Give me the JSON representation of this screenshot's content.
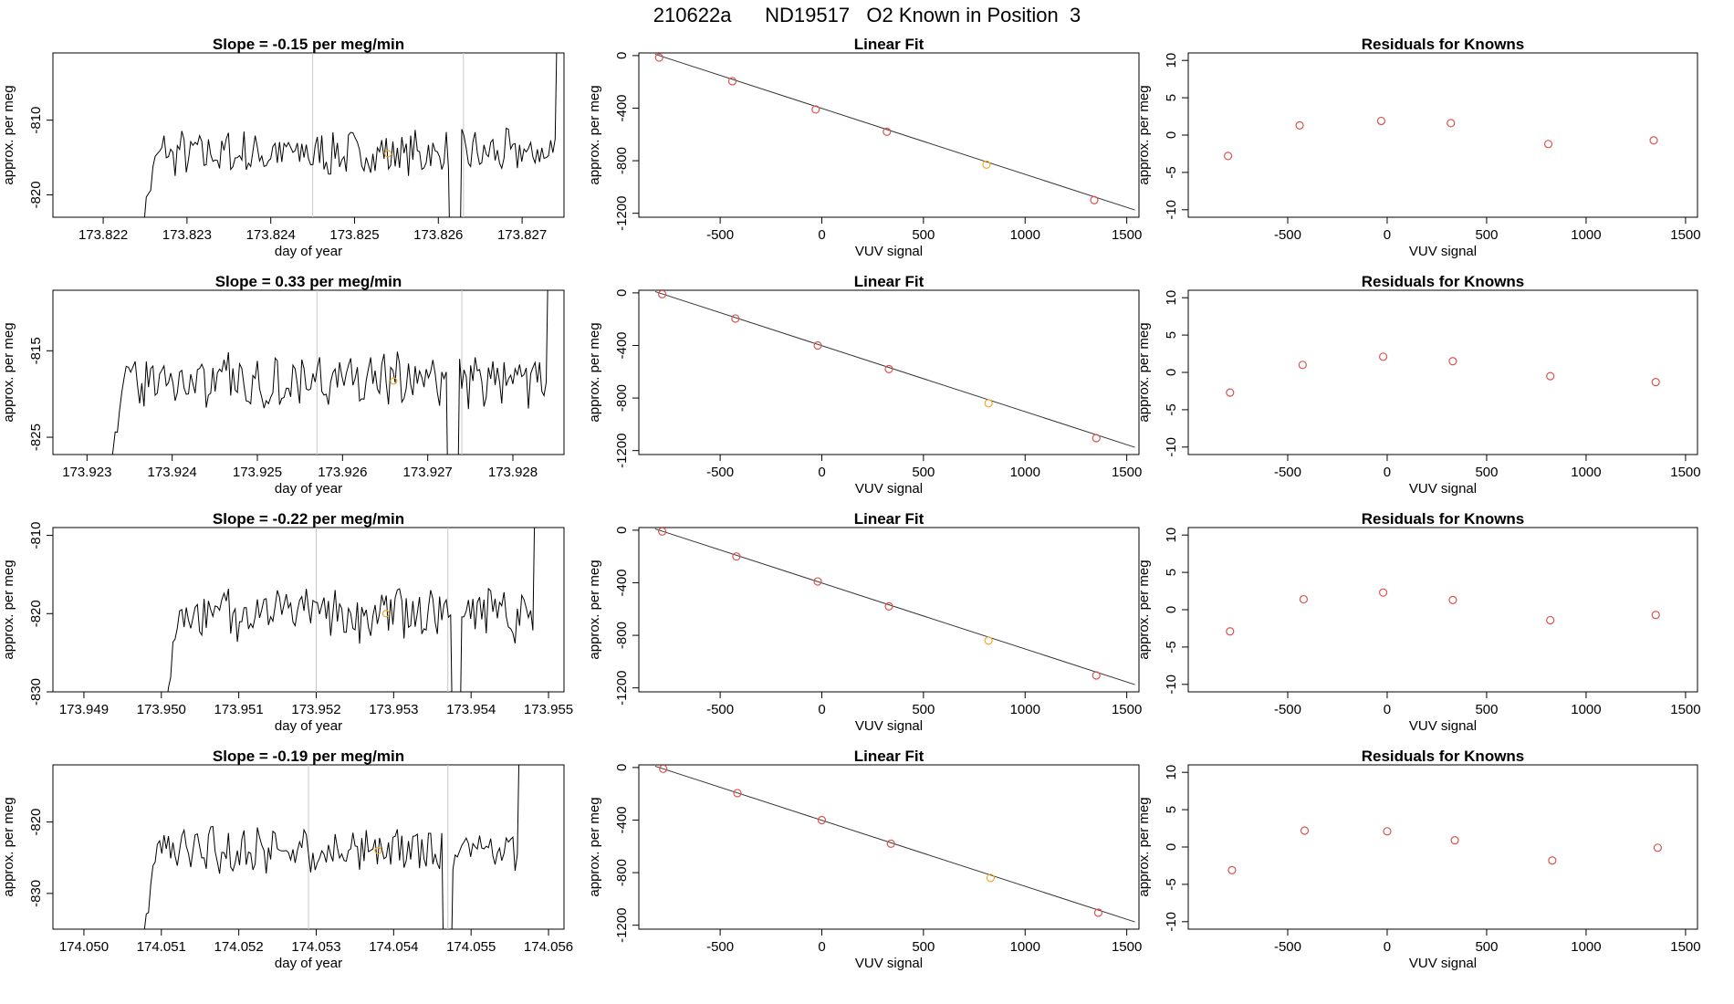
{
  "page": {
    "title": "210622a      ND19517   O2 Known in Position  3"
  },
  "colors": {
    "line": "#000000",
    "point": "#d9534f",
    "highlight": "#f0a830",
    "divider": "#c8c8c8",
    "fit": "#333333"
  },
  "chart_data": [
    {
      "type": "line",
      "row": 1,
      "title": "Slope =  -0.15  per meg/min",
      "xlabel": "day of year",
      "ylabel": "approx. per meg",
      "xlim": [
        173.8214,
        173.8275
      ],
      "ylim": [
        -823,
        -801
      ],
      "xticks": [
        "173.822",
        "173.823",
        "173.824",
        "173.825",
        "173.826",
        "173.827"
      ],
      "yticks": [
        -820,
        -810
      ],
      "dividers": [
        173.8245,
        173.8263
      ],
      "highlight_x": 173.8254,
      "start": 173.8224,
      "end": 173.8274,
      "baseline": -814.5,
      "noise": 2.2,
      "spike_down": 173.8262
    },
    {
      "type": "line",
      "row": 2,
      "title": "Slope =  0.33  per meg/min",
      "xlabel": "day of year",
      "ylabel": "approx. per meg",
      "xlim": [
        173.9226,
        173.9286
      ],
      "ylim": [
        -827,
        -808
      ],
      "xticks": [
        "173.923",
        "173.924",
        "173.925",
        "173.926",
        "173.927",
        "173.928"
      ],
      "yticks": [
        -825,
        -815
      ],
      "dividers": [
        173.9257,
        173.9274
      ],
      "highlight_x": 173.9266,
      "start": 173.9232,
      "end": 173.9284,
      "baseline": -818.5,
      "noise": 2.2,
      "spike_down": 173.9273
    },
    {
      "type": "line",
      "row": 3,
      "title": "Slope =  -0.22  per meg/min",
      "xlabel": "day of year",
      "ylabel": "approx. per meg",
      "xlim": [
        173.9486,
        173.9552
      ],
      "ylim": [
        -830,
        -809
      ],
      "xticks": [
        "173.949",
        "173.950",
        "173.951",
        "173.952",
        "173.953",
        "173.954",
        "173.955"
      ],
      "yticks": [
        -830,
        -820,
        -810
      ],
      "dividers": [
        173.952,
        173.9537
      ],
      "highlight_x": 173.9529,
      "start": 173.95,
      "end": 173.9548,
      "baseline": -820,
      "noise": 2.5,
      "spike_down": 173.9538
    },
    {
      "type": "line",
      "row": 4,
      "title": "Slope =  -0.19  per meg/min",
      "xlabel": "day of year",
      "ylabel": "approx. per meg",
      "xlim": [
        174.0496,
        174.0562
      ],
      "ylim": [
        -835,
        -812
      ],
      "xticks": [
        "174.050",
        "174.051",
        "174.052",
        "174.053",
        "174.054",
        "174.055",
        "174.056"
      ],
      "yticks": [
        -830,
        -820
      ],
      "dividers": [
        174.0529,
        174.0547
      ],
      "highlight_x": 174.0538,
      "start": 174.0507,
      "end": 174.0556,
      "baseline": -824,
      "noise": 2.2,
      "spike_down": 174.0547
    },
    {
      "type": "scatter",
      "row": 1,
      "title": "Linear Fit",
      "xlabel": "VUV signal",
      "ylabel": "approx. per meg",
      "xlim": [
        -900,
        1560
      ],
      "ylim": [
        -1230,
        20
      ],
      "xticks": [
        -500,
        0,
        500,
        1000,
        1500
      ],
      "yticks": [
        0,
        -400,
        -800,
        -1200
      ],
      "line": [
        [
          -820,
          10
        ],
        [
          1540,
          -1175
        ]
      ],
      "points": [
        [
          -800,
          -15
        ],
        [
          -440,
          -195
        ],
        [
          -30,
          -410
        ],
        [
          320,
          -580
        ],
        [
          810,
          -830
        ],
        [
          1340,
          -1100
        ]
      ],
      "highlight_index": 4
    },
    {
      "type": "scatter",
      "row": 2,
      "title": "Linear Fit",
      "xlabel": "VUV signal",
      "ylabel": "approx. per meg",
      "xlim": [
        -900,
        1560
      ],
      "ylim": [
        -1230,
        20
      ],
      "xticks": [
        -500,
        0,
        500,
        1000,
        1500
      ],
      "yticks": [
        0,
        -400,
        -800,
        -1200
      ],
      "line": [
        [
          -820,
          10
        ],
        [
          1540,
          -1175
        ]
      ],
      "points": [
        [
          -785,
          -10
        ],
        [
          -425,
          -195
        ],
        [
          -20,
          -400
        ],
        [
          330,
          -580
        ],
        [
          820,
          -840
        ],
        [
          1350,
          -1105
        ]
      ],
      "highlight_index": 4
    },
    {
      "type": "scatter",
      "row": 3,
      "title": "Linear Fit",
      "xlabel": "VUV signal",
      "ylabel": "approx. per meg",
      "xlim": [
        -900,
        1560
      ],
      "ylim": [
        -1230,
        20
      ],
      "xticks": [
        -500,
        0,
        500,
        1000,
        1500
      ],
      "yticks": [
        0,
        -400,
        -800,
        -1200
      ],
      "line": [
        [
          -820,
          10
        ],
        [
          1540,
          -1175
        ]
      ],
      "points": [
        [
          -785,
          -10
        ],
        [
          -420,
          -200
        ],
        [
          -20,
          -390
        ],
        [
          330,
          -580
        ],
        [
          820,
          -840
        ],
        [
          1350,
          -1105
        ]
      ],
      "highlight_index": 4
    },
    {
      "type": "scatter",
      "row": 4,
      "title": "Linear Fit",
      "xlabel": "VUV signal",
      "ylabel": "approx. per meg",
      "xlim": [
        -900,
        1560
      ],
      "ylim": [
        -1230,
        20
      ],
      "xticks": [
        -500,
        0,
        500,
        1000,
        1500
      ],
      "yticks": [
        0,
        -400,
        -800,
        -1200
      ],
      "line": [
        [
          -820,
          10
        ],
        [
          1540,
          -1175
        ]
      ],
      "points": [
        [
          -780,
          -10
        ],
        [
          -415,
          -195
        ],
        [
          0,
          -400
        ],
        [
          340,
          -580
        ],
        [
          830,
          -840
        ],
        [
          1360,
          -1105
        ]
      ],
      "highlight_index": 4
    },
    {
      "type": "scatter",
      "row": 1,
      "title": "Residuals for Knowns",
      "xlabel": "VUV signal",
      "ylabel": "approx. per meg",
      "xlim": [
        -1000,
        1560
      ],
      "ylim": [
        -11,
        11
      ],
      "xticks": [
        -500,
        0,
        500,
        1000,
        1500
      ],
      "yticks": [
        -10,
        -5,
        0,
        5,
        10
      ],
      "points": [
        [
          -800,
          -2.8
        ],
        [
          -440,
          1.3
        ],
        [
          -30,
          1.9
        ],
        [
          320,
          1.6
        ],
        [
          810,
          -1.2
        ],
        [
          1340,
          -0.7
        ]
      ]
    },
    {
      "type": "scatter",
      "row": 2,
      "title": "Residuals for Knowns",
      "xlabel": "VUV signal",
      "ylabel": "approx. per meg",
      "xlim": [
        -1000,
        1560
      ],
      "ylim": [
        -11,
        11
      ],
      "xticks": [
        -500,
        0,
        500,
        1000,
        1500
      ],
      "yticks": [
        -10,
        -5,
        0,
        5,
        10
      ],
      "points": [
        [
          -790,
          -2.7
        ],
        [
          -425,
          1.0
        ],
        [
          -20,
          2.1
        ],
        [
          330,
          1.5
        ],
        [
          820,
          -0.5
        ],
        [
          1350,
          -1.3
        ]
      ]
    },
    {
      "type": "scatter",
      "row": 3,
      "title": "Residuals for Knowns",
      "xlabel": "VUV signal",
      "ylabel": "approx. per meg",
      "xlim": [
        -1000,
        1560
      ],
      "ylim": [
        -11,
        11
      ],
      "xticks": [
        -500,
        0,
        500,
        1000,
        1500
      ],
      "yticks": [
        -10,
        -5,
        0,
        5,
        10
      ],
      "points": [
        [
          -790,
          -2.9
        ],
        [
          -420,
          1.4
        ],
        [
          -20,
          2.3
        ],
        [
          330,
          1.3
        ],
        [
          820,
          -1.4
        ],
        [
          1350,
          -0.7
        ]
      ]
    },
    {
      "type": "scatter",
      "row": 4,
      "title": "Residuals for Knowns",
      "xlabel": "VUV signal",
      "ylabel": "approx. per meg",
      "xlim": [
        -1000,
        1560
      ],
      "ylim": [
        -11,
        11
      ],
      "xticks": [
        -500,
        0,
        500,
        1000,
        1500
      ],
      "yticks": [
        -10,
        -5,
        0,
        5,
        10
      ],
      "points": [
        [
          -780,
          -3.1
        ],
        [
          -415,
          2.2
        ],
        [
          0,
          2.1
        ],
        [
          340,
          0.9
        ],
        [
          830,
          -1.8
        ],
        [
          1360,
          -0.1
        ]
      ]
    }
  ]
}
